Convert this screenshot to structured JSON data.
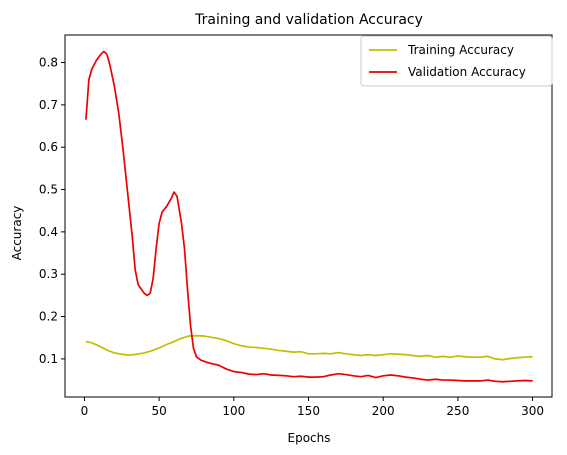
{
  "chart_data": {
    "type": "line",
    "title": "Training and validation Accuracy",
    "xlabel": "Epochs",
    "ylabel": "Accuracy",
    "xlim": [
      -13,
      313
    ],
    "ylim": [
      0.01,
      0.865
    ],
    "xticks": [
      0,
      50,
      100,
      150,
      200,
      250,
      300
    ],
    "yticks": [
      0.1,
      0.2,
      0.3,
      0.4,
      0.5,
      0.6,
      0.7,
      0.8
    ],
    "grid": false,
    "legend_position": "top-right",
    "series": [
      {
        "name": "Training Accuracy",
        "color": "#bfbf00",
        "points": [
          [
            1,
            0.141
          ],
          [
            5,
            0.138
          ],
          [
            10,
            0.13
          ],
          [
            15,
            0.121
          ],
          [
            20,
            0.114
          ],
          [
            25,
            0.111
          ],
          [
            30,
            0.109
          ],
          [
            35,
            0.111
          ],
          [
            40,
            0.114
          ],
          [
            45,
            0.119
          ],
          [
            50,
            0.126
          ],
          [
            55,
            0.134
          ],
          [
            60,
            0.141
          ],
          [
            65,
            0.149
          ],
          [
            70,
            0.154
          ],
          [
            75,
            0.155
          ],
          [
            80,
            0.154
          ],
          [
            85,
            0.151
          ],
          [
            90,
            0.148
          ],
          [
            95,
            0.143
          ],
          [
            100,
            0.136
          ],
          [
            105,
            0.131
          ],
          [
            110,
            0.128
          ],
          [
            115,
            0.127
          ],
          [
            120,
            0.125
          ],
          [
            125,
            0.123
          ],
          [
            130,
            0.12
          ],
          [
            135,
            0.118
          ],
          [
            140,
            0.116
          ],
          [
            145,
            0.117
          ],
          [
            150,
            0.112
          ],
          [
            155,
            0.112
          ],
          [
            160,
            0.113
          ],
          [
            165,
            0.112
          ],
          [
            170,
            0.115
          ],
          [
            175,
            0.112
          ],
          [
            180,
            0.11
          ],
          [
            185,
            0.108
          ],
          [
            190,
            0.11
          ],
          [
            195,
            0.108
          ],
          [
            200,
            0.11
          ],
          [
            205,
            0.112
          ],
          [
            210,
            0.111
          ],
          [
            215,
            0.11
          ],
          [
            220,
            0.108
          ],
          [
            225,
            0.106
          ],
          [
            230,
            0.108
          ],
          [
            235,
            0.104
          ],
          [
            240,
            0.106
          ],
          [
            245,
            0.104
          ],
          [
            250,
            0.107
          ],
          [
            255,
            0.105
          ],
          [
            260,
            0.104
          ],
          [
            265,
            0.104
          ],
          [
            270,
            0.106
          ],
          [
            275,
            0.1
          ],
          [
            280,
            0.098
          ],
          [
            285,
            0.101
          ],
          [
            290,
            0.103
          ],
          [
            295,
            0.104
          ],
          [
            300,
            0.105
          ]
        ]
      },
      {
        "name": "Validation Accuracy",
        "color": "#ee0000",
        "points": [
          [
            1,
            0.665
          ],
          [
            3,
            0.76
          ],
          [
            5,
            0.785
          ],
          [
            8,
            0.805
          ],
          [
            10,
            0.815
          ],
          [
            12,
            0.823
          ],
          [
            13,
            0.826
          ],
          [
            15,
            0.82
          ],
          [
            17,
            0.795
          ],
          [
            20,
            0.745
          ],
          [
            23,
            0.68
          ],
          [
            26,
            0.59
          ],
          [
            29,
            0.49
          ],
          [
            32,
            0.39
          ],
          [
            34,
            0.31
          ],
          [
            36,
            0.275
          ],
          [
            38,
            0.265
          ],
          [
            40,
            0.255
          ],
          [
            42,
            0.25
          ],
          [
            44,
            0.255
          ],
          [
            46,
            0.29
          ],
          [
            48,
            0.36
          ],
          [
            50,
            0.42
          ],
          [
            52,
            0.447
          ],
          [
            55,
            0.46
          ],
          [
            58,
            0.478
          ],
          [
            60,
            0.494
          ],
          [
            62,
            0.484
          ],
          [
            65,
            0.42
          ],
          [
            67,
            0.36
          ],
          [
            69,
            0.265
          ],
          [
            71,
            0.18
          ],
          [
            73,
            0.125
          ],
          [
            75,
            0.105
          ],
          [
            78,
            0.097
          ],
          [
            82,
            0.092
          ],
          [
            86,
            0.088
          ],
          [
            90,
            0.085
          ],
          [
            95,
            0.076
          ],
          [
            100,
            0.07
          ],
          [
            105,
            0.068
          ],
          [
            110,
            0.064
          ],
          [
            115,
            0.063
          ],
          [
            120,
            0.065
          ],
          [
            125,
            0.062
          ],
          [
            130,
            0.061
          ],
          [
            135,
            0.06
          ],
          [
            140,
            0.058
          ],
          [
            145,
            0.059
          ],
          [
            150,
            0.057
          ],
          [
            155,
            0.057
          ],
          [
            160,
            0.058
          ],
          [
            165,
            0.062
          ],
          [
            170,
            0.065
          ],
          [
            175,
            0.063
          ],
          [
            180,
            0.06
          ],
          [
            185,
            0.058
          ],
          [
            190,
            0.061
          ],
          [
            195,
            0.056
          ],
          [
            200,
            0.06
          ],
          [
            205,
            0.062
          ],
          [
            210,
            0.06
          ],
          [
            215,
            0.057
          ],
          [
            220,
            0.055
          ],
          [
            225,
            0.052
          ],
          [
            230,
            0.05
          ],
          [
            235,
            0.052
          ],
          [
            240,
            0.05
          ],
          [
            245,
            0.05
          ],
          [
            250,
            0.049
          ],
          [
            255,
            0.048
          ],
          [
            260,
            0.048
          ],
          [
            265,
            0.048
          ],
          [
            270,
            0.05
          ],
          [
            275,
            0.047
          ],
          [
            280,
            0.046
          ],
          [
            285,
            0.047
          ],
          [
            290,
            0.048
          ],
          [
            295,
            0.049
          ],
          [
            300,
            0.048
          ]
        ]
      }
    ]
  }
}
